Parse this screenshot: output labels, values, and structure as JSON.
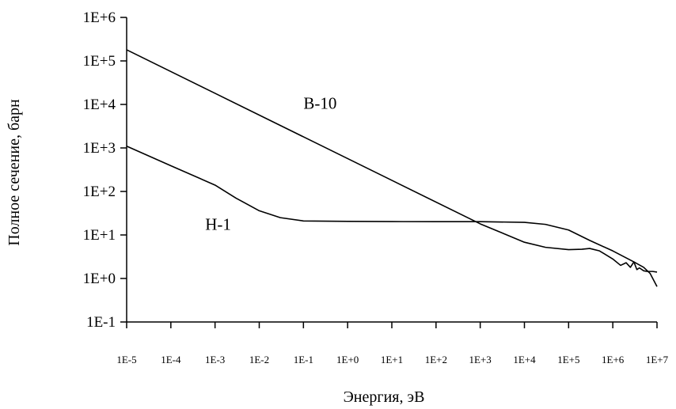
{
  "chart_data": {
    "type": "line",
    "title": "",
    "xlabel": "Энергия, эВ",
    "ylabel": "Полное сечение, барн",
    "xscale": "log",
    "yscale": "log",
    "xlim": [
      1e-05,
      10000000.0
    ],
    "ylim": [
      0.1,
      1000000
    ],
    "grid": false,
    "x_tick_labels": [
      "1E-5",
      "1E-4",
      "1E-3",
      "1E-2",
      "1E-1",
      "1E+0",
      "1E+1",
      "1E+2",
      "1E+3",
      "1E+4",
      "1E+5",
      "1E+6",
      "1E+7"
    ],
    "y_tick_labels": [
      "1E-1",
      "1E+0",
      "1E+1",
      "1E+2",
      "1E+3",
      "1E+4",
      "1E+5",
      "1E+6"
    ],
    "series": [
      {
        "name": "B-10",
        "x": [
          1e-05,
          0.001,
          0.1,
          10.0,
          1000.0,
          10000.0,
          30000.0,
          100000.0,
          200000.0,
          300000.0,
          500000.0,
          1000000.0,
          1500000.0,
          2000000.0,
          2500000.0,
          3000000.0,
          3500000.0,
          4000000.0,
          5000000.0,
          6000000.0,
          8000000.0,
          10000000.0
        ],
        "y": [
          180000,
          18000,
          1800,
          180,
          18,
          6.8,
          5.2,
          4.6,
          4.7,
          4.9,
          4.3,
          2.8,
          2.0,
          2.3,
          1.8,
          2.4,
          1.6,
          1.75,
          1.5,
          1.45,
          1.45,
          1.4
        ]
      },
      {
        "name": "H-1",
        "x": [
          1e-05,
          0.0001,
          0.001,
          0.003,
          0.01,
          0.03,
          0.1,
          1,
          10,
          100,
          1000.0,
          10000.0,
          30000.0,
          100000.0,
          300000.0,
          1000000.0,
          3000000.0,
          5000000.0,
          7000000.0,
          10000000.0
        ],
        "y": [
          1100,
          390,
          140,
          70,
          36,
          25,
          21,
          20.5,
          20.3,
          20.2,
          20.2,
          19.5,
          17.5,
          13,
          7.5,
          4.3,
          2.4,
          1.8,
          1.3,
          0.65
        ]
      }
    ],
    "label_positions": [
      {
        "series": "B-10",
        "x": 0.1,
        "y": 8000
      },
      {
        "series": "H-1",
        "x": 0.0006,
        "y": 13
      }
    ]
  }
}
